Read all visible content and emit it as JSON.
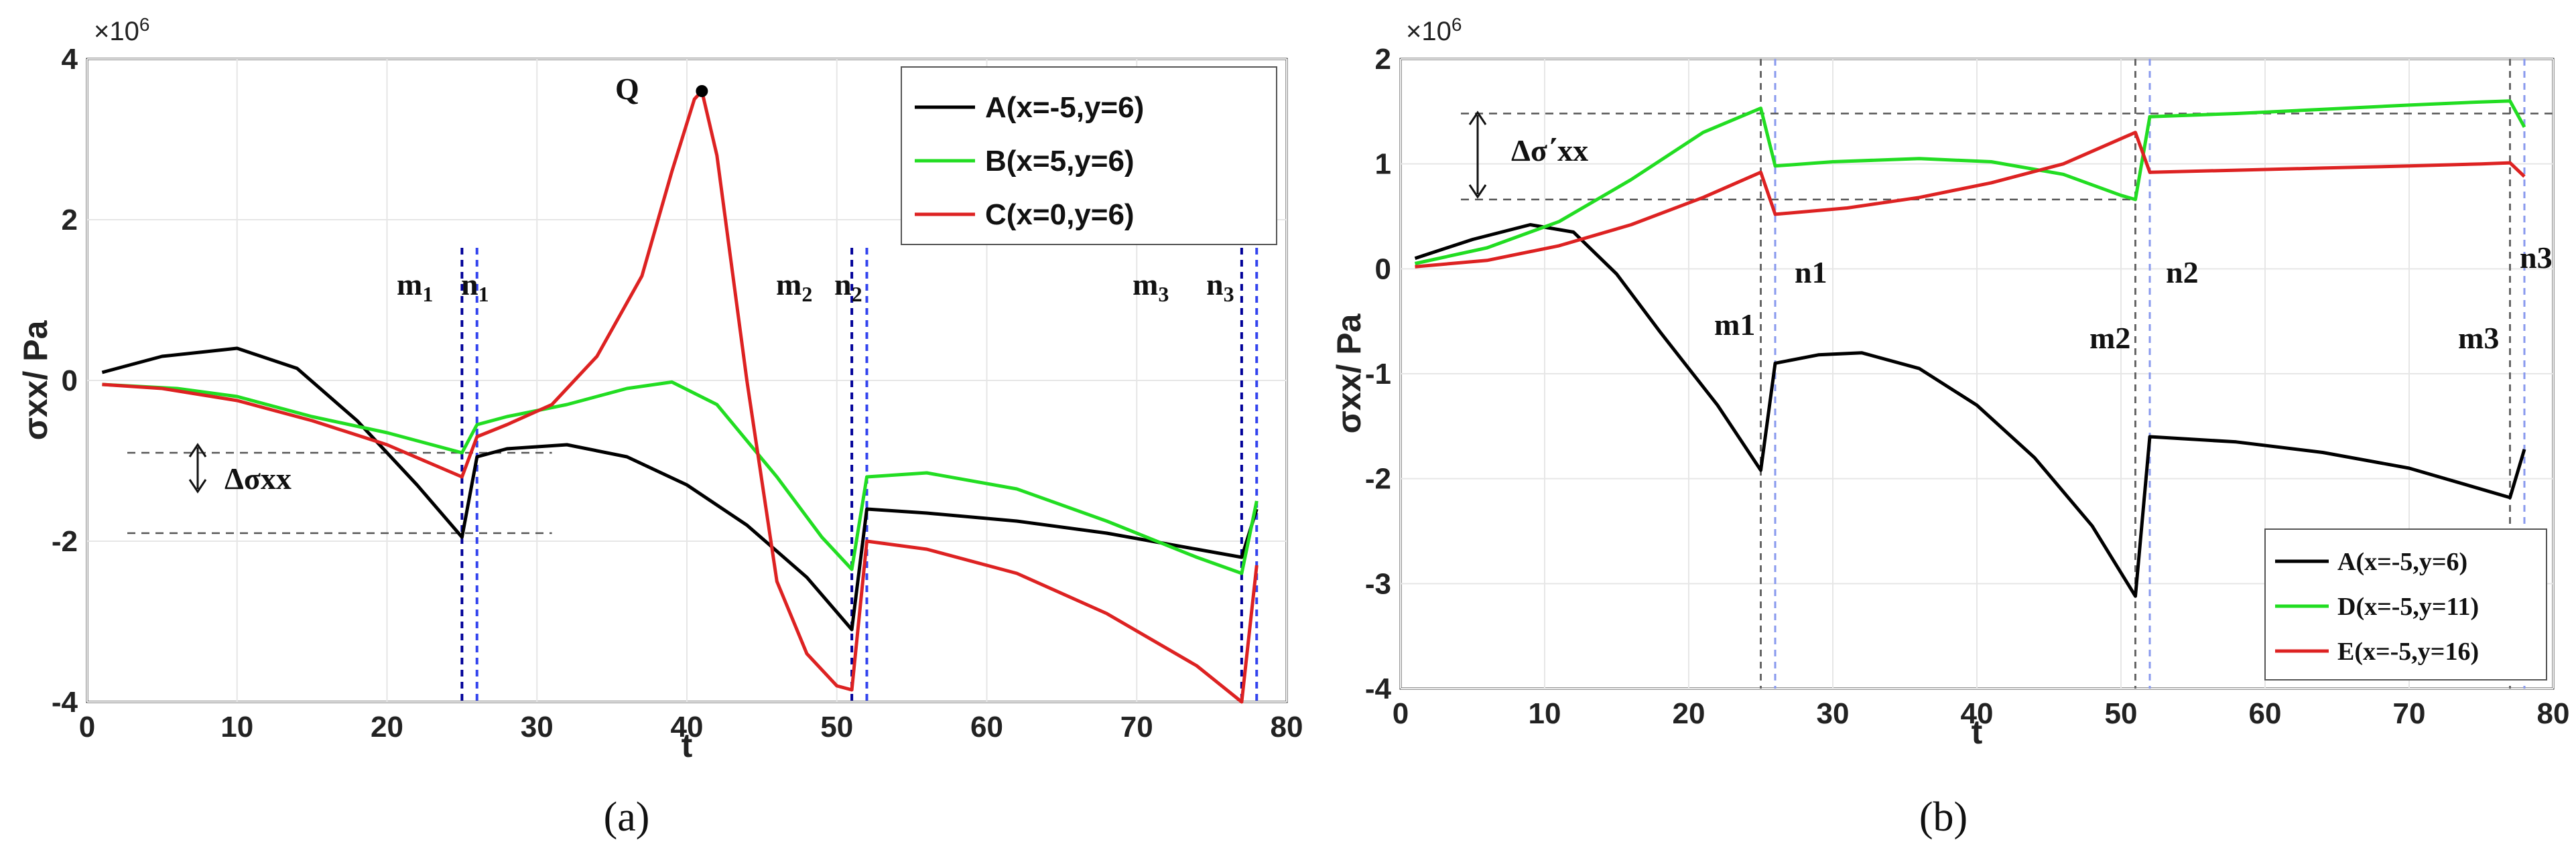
{
  "chart_data": [
    {
      "type": "line",
      "panel_label": "(a)",
      "xlabel": "t",
      "ylabel": "σxx/ Pa",
      "y_multiplier": "×10",
      "y_multiplier_exp": "6",
      "xlim": [
        0,
        80
      ],
      "ylim": [
        -4,
        4
      ],
      "xticks": [
        0,
        10,
        20,
        30,
        40,
        50,
        60,
        70,
        80
      ],
      "yticks": [
        -4,
        -2,
        0,
        2,
        4
      ],
      "grid": true,
      "legend_position": "top-right",
      "series": [
        {
          "name": "A(x=-5,y=6)",
          "color": "#000000",
          "points": [
            [
              1,
              0.1
            ],
            [
              5,
              0.3
            ],
            [
              10,
              0.4
            ],
            [
              14,
              0.15
            ],
            [
              18,
              -0.5
            ],
            [
              22,
              -1.3
            ],
            [
              25,
              -1.95
            ],
            [
              26,
              -0.95
            ],
            [
              28,
              -0.85
            ],
            [
              32,
              -0.8
            ],
            [
              36,
              -0.95
            ],
            [
              40,
              -1.3
            ],
            [
              44,
              -1.8
            ],
            [
              48,
              -2.45
            ],
            [
              51,
              -3.1
            ],
            [
              52,
              -1.6
            ],
            [
              56,
              -1.65
            ],
            [
              62,
              -1.75
            ],
            [
              68,
              -1.9
            ],
            [
              74,
              -2.1
            ],
            [
              77,
              -2.2
            ],
            [
              78,
              -1.6
            ]
          ]
        },
        {
          "name": "B(x=5,y=6)",
          "color": "#22dd22",
          "points": [
            [
              1,
              -0.05
            ],
            [
              6,
              -0.1
            ],
            [
              10,
              -0.2
            ],
            [
              15,
              -0.45
            ],
            [
              20,
              -0.65
            ],
            [
              25,
              -0.9
            ],
            [
              26,
              -0.55
            ],
            [
              28,
              -0.45
            ],
            [
              32,
              -0.3
            ],
            [
              36,
              -0.1
            ],
            [
              39,
              -0.02
            ],
            [
              42,
              -0.3
            ],
            [
              46,
              -1.2
            ],
            [
              49,
              -1.95
            ],
            [
              51,
              -2.35
            ],
            [
              52,
              -1.2
            ],
            [
              56,
              -1.15
            ],
            [
              62,
              -1.35
            ],
            [
              68,
              -1.75
            ],
            [
              74,
              -2.2
            ],
            [
              77,
              -2.4
            ],
            [
              78,
              -1.5
            ]
          ]
        },
        {
          "name": "C(x=0,y=6)",
          "color": "#dd2222",
          "points": [
            [
              1,
              -0.05
            ],
            [
              5,
              -0.1
            ],
            [
              10,
              -0.25
            ],
            [
              15,
              -0.5
            ],
            [
              20,
              -0.8
            ],
            [
              25,
              -1.2
            ],
            [
              26,
              -0.7
            ],
            [
              28,
              -0.55
            ],
            [
              31,
              -0.3
            ],
            [
              34,
              0.3
            ],
            [
              37,
              1.3
            ],
            [
              39,
              2.6
            ],
            [
              40.5,
              3.5
            ],
            [
              41,
              3.6
            ],
            [
              42,
              2.8
            ],
            [
              44,
              0.0
            ],
            [
              46,
              -2.5
            ],
            [
              48,
              -3.4
            ],
            [
              50,
              -3.8
            ],
            [
              51,
              -3.85
            ],
            [
              52,
              -2.0
            ],
            [
              56,
              -2.1
            ],
            [
              62,
              -2.4
            ],
            [
              68,
              -2.9
            ],
            [
              74,
              -3.55
            ],
            [
              77,
              -4.0
            ],
            [
              78,
              -2.3
            ]
          ]
        }
      ],
      "annotations": {
        "point_label": "Q",
        "delta_label": "Δσxx",
        "markers": [
          {
            "m": "m",
            "m_sub": "1",
            "n": "n",
            "n_sub": "1",
            "m_t": 25,
            "n_t": 26
          },
          {
            "m": "m",
            "m_sub": "2",
            "n": "n",
            "n_sub": "2",
            "m_t": 51,
            "n_t": 52
          },
          {
            "m": "m",
            "m_sub": "3",
            "n": "n",
            "n_sub": "3",
            "m_t": 77,
            "n_t": 78
          }
        ]
      }
    },
    {
      "type": "line",
      "panel_label": "(b)",
      "xlabel": "t",
      "ylabel": "σxx/ Pa",
      "y_multiplier": "×10",
      "y_multiplier_exp": "6",
      "xlim": [
        0,
        80
      ],
      "ylim": [
        -4,
        2
      ],
      "xticks": [
        0,
        10,
        20,
        30,
        40,
        50,
        60,
        70,
        80
      ],
      "yticks": [
        -4,
        -3,
        -2,
        -1,
        0,
        1,
        2
      ],
      "grid": true,
      "legend_position": "bottom-right",
      "series": [
        {
          "name": "A(x=-5,y=6)",
          "color": "#000000",
          "points": [
            [
              1,
              0.1
            ],
            [
              5,
              0.28
            ],
            [
              9,
              0.42
            ],
            [
              12,
              0.35
            ],
            [
              15,
              -0.05
            ],
            [
              18,
              -0.6
            ],
            [
              22,
              -1.3
            ],
            [
              25,
              -1.92
            ],
            [
              26,
              -0.9
            ],
            [
              29,
              -0.82
            ],
            [
              32,
              -0.8
            ],
            [
              36,
              -0.95
            ],
            [
              40,
              -1.3
            ],
            [
              44,
              -1.8
            ],
            [
              48,
              -2.45
            ],
            [
              51,
              -3.12
            ],
            [
              52,
              -1.6
            ],
            [
              58,
              -1.65
            ],
            [
              64,
              -1.75
            ],
            [
              70,
              -1.9
            ],
            [
              75,
              -2.1
            ],
            [
              77,
              -2.18
            ],
            [
              78,
              -1.72
            ]
          ]
        },
        {
          "name": "D(x=-5,y=11)",
          "color": "#22dd22",
          "points": [
            [
              1,
              0.05
            ],
            [
              6,
              0.2
            ],
            [
              11,
              0.45
            ],
            [
              16,
              0.85
            ],
            [
              21,
              1.3
            ],
            [
              25,
              1.53
            ],
            [
              26,
              0.98
            ],
            [
              30,
              1.02
            ],
            [
              36,
              1.05
            ],
            [
              41,
              1.02
            ],
            [
              46,
              0.9
            ],
            [
              50,
              0.7
            ],
            [
              51,
              0.66
            ],
            [
              52,
              1.45
            ],
            [
              58,
              1.48
            ],
            [
              64,
              1.52
            ],
            [
              70,
              1.56
            ],
            [
              75,
              1.59
            ],
            [
              77,
              1.6
            ],
            [
              78,
              1.35
            ]
          ]
        },
        {
          "name": "E(x=-5,y=16)",
          "color": "#dd2222",
          "points": [
            [
              1,
              0.02
            ],
            [
              6,
              0.08
            ],
            [
              11,
              0.22
            ],
            [
              16,
              0.42
            ],
            [
              21,
              0.68
            ],
            [
              25,
              0.92
            ],
            [
              26,
              0.52
            ],
            [
              31,
              0.58
            ],
            [
              36,
              0.68
            ],
            [
              41,
              0.82
            ],
            [
              46,
              1.0
            ],
            [
              51,
              1.3
            ],
            [
              52,
              0.92
            ],
            [
              58,
              0.94
            ],
            [
              64,
              0.96
            ],
            [
              70,
              0.98
            ],
            [
              75,
              1.0
            ],
            [
              77,
              1.01
            ],
            [
              78,
              0.88
            ]
          ]
        }
      ],
      "annotations": {
        "delta_label": "Δσ΄xx",
        "markers": [
          {
            "m": "m1",
            "n": "n1",
            "m_t": 25,
            "n_t": 26
          },
          {
            "m": "m2",
            "n": "n2",
            "m_t": 51,
            "n_t": 52
          },
          {
            "m": "m3",
            "n": "n3",
            "m_t": 77,
            "n_t": 78
          }
        ]
      }
    }
  ]
}
